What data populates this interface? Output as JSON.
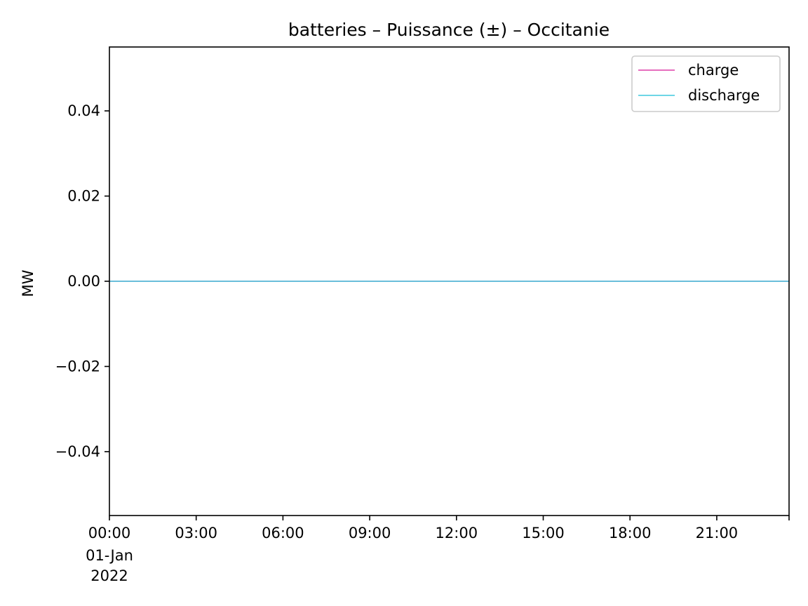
{
  "chart_data": {
    "type": "line",
    "title": "batteries – Puissance (±) – Occitanie",
    "xlabel": "",
    "ylabel": "MW",
    "x_ticks": [
      {
        "hour": 0,
        "label": "00:00",
        "sublabel": "01-Jan",
        "subsublabel": "2022"
      },
      {
        "hour": 3,
        "label": "03:00"
      },
      {
        "hour": 6,
        "label": "06:00"
      },
      {
        "hour": 9,
        "label": "09:00"
      },
      {
        "hour": 12,
        "label": "12:00"
      },
      {
        "hour": 15,
        "label": "15:00"
      },
      {
        "hour": 18,
        "label": "18:00"
      },
      {
        "hour": 21,
        "label": "21:00"
      }
    ],
    "xlim_hours": [
      0,
      23.5
    ],
    "ylim": [
      -0.055,
      0.055
    ],
    "y_ticks": [
      {
        "value": 0.04,
        "label": "0.04"
      },
      {
        "value": 0.02,
        "label": "0.02"
      },
      {
        "value": 0.0,
        "label": "0.00"
      },
      {
        "value": -0.02,
        "label": "−0.02"
      },
      {
        "value": -0.04,
        "label": "−0.04"
      }
    ],
    "series": [
      {
        "name": "charge",
        "color": "#dd3fa8",
        "x_hours": [
          0,
          23.5
        ],
        "y": [
          0,
          0
        ]
      },
      {
        "name": "discharge",
        "color": "#3ec8dd",
        "x_hours": [
          0,
          23.5
        ],
        "y": [
          0,
          0
        ]
      }
    ],
    "legend_position": "top-right",
    "grid": false
  }
}
